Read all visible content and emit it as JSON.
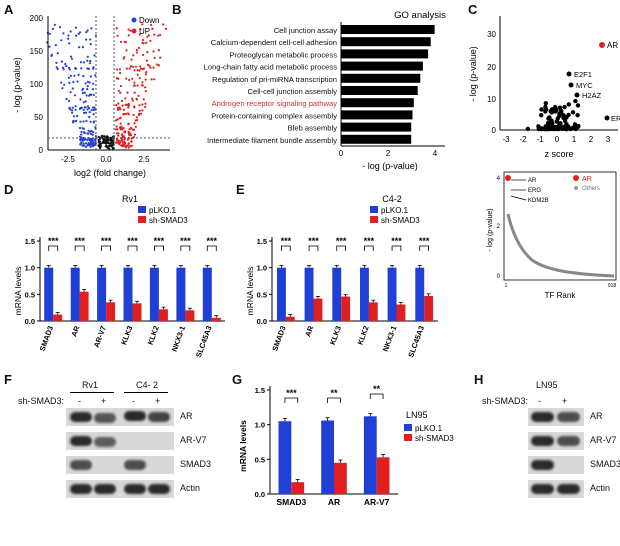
{
  "panelA": {
    "label": "A",
    "xlabel": "log2 (fold change)",
    "ylabel": "- log (p-value)",
    "xticks": [
      "-2.5",
      "0.0",
      "2.5"
    ],
    "yticks": [
      "0",
      "50",
      "100",
      "150",
      "200"
    ],
    "legend": [
      {
        "name": "Down",
        "color": "#1f3fd6"
      },
      {
        "name": "UP",
        "color": "#e02020"
      }
    ]
  },
  "panelB": {
    "label": "B",
    "title": "GO analysis",
    "xlabel": "- log (p-value)",
    "xticks": [
      "0",
      "2",
      "4"
    ],
    "highlight_color": "#d03030",
    "chart_data": {
      "type": "bar",
      "categories": [
        "Cell junction assay",
        "Calcium-dependent cell-cell adhesion",
        "Proteoglycan metabolic process",
        "Long-chain fatty acid metabolic process",
        "Regulation of pri-miRNA transcription",
        "Cell-cell junction assembly",
        "Androgen receptor signaling pathway",
        "Protein-containing complex assembly",
        "Bleb assembly",
        "Intermediate filament bundle assembly"
      ],
      "values": [
        3.6,
        3.45,
        3.35,
        3.15,
        3.05,
        2.95,
        2.8,
        2.75,
        2.7,
        2.7
      ],
      "xlim": [
        0,
        4
      ],
      "highlight_index": 6
    }
  },
  "panelC": {
    "label": "C",
    "xlabel": "z score",
    "ylabel": "- log (p-value)",
    "xticks": [
      "-3",
      "-2",
      "-1",
      "0",
      "1",
      "2",
      "3"
    ],
    "yticks": [
      "0",
      "10",
      "20",
      "30"
    ],
    "annotations": [
      "AR",
      "E2F1",
      "MYC",
      "H2AZ",
      "ERG"
    ],
    "rank": {
      "xlabel": "TF Rank",
      "ylabel": "- log (p-value)",
      "yticks": [
        "0",
        "2",
        "4"
      ],
      "xticks": [
        "1",
        "918"
      ],
      "labels": [
        "AR",
        "ERG",
        "KDM2B"
      ],
      "legend": [
        "AR",
        "Others"
      ]
    }
  },
  "panelD": {
    "label": "D",
    "title": "Rv1",
    "ylabel": "mRNA levels",
    "yticks": [
      "0.0",
      "0.5",
      "1.0",
      "1.5"
    ],
    "sig": "***",
    "chart_data": {
      "type": "bar",
      "categories": [
        "SMAD3",
        "AR",
        "AR-V7",
        "KLK3",
        "KLK2",
        "NKX3-1",
        "SLC45A3"
      ],
      "series": [
        {
          "name": "pLKO.1",
          "color": "#1f3fd6",
          "values": [
            1,
            1,
            1,
            1,
            1,
            1,
            1
          ]
        },
        {
          "name": "sh-SMAD3",
          "color": "#e02020",
          "values": [
            0.12,
            0.55,
            0.35,
            0.33,
            0.22,
            0.2,
            0.06
          ]
        }
      ],
      "ylim": [
        0,
        1.5
      ]
    }
  },
  "panelE": {
    "label": "E",
    "title": "C4-2",
    "ylabel": "mRNA levels",
    "yticks": [
      "0.0",
      "0.5",
      "1.0",
      "1.5"
    ],
    "sig": "***",
    "chart_data": {
      "type": "bar",
      "categories": [
        "SMAD3",
        "AR",
        "KLK3",
        "KLK2",
        "NKX3-1",
        "SLC45A3"
      ],
      "series": [
        {
          "name": "pLKO.1",
          "color": "#1f3fd6",
          "values": [
            1,
            1,
            1,
            1,
            1,
            1
          ]
        },
        {
          "name": "sh-SMAD3",
          "color": "#e02020",
          "values": [
            0.08,
            0.42,
            0.46,
            0.35,
            0.31,
            0.47
          ]
        }
      ],
      "ylim": [
        0,
        1.5
      ]
    }
  },
  "panelF": {
    "label": "F",
    "cells": [
      "Rv1",
      "C4- 2"
    ],
    "shrow": "sh-SMAD3:",
    "signs": [
      "-",
      "+",
      "-",
      "+"
    ],
    "proteins": [
      "AR",
      "AR-V7",
      "SMAD3",
      "Actin"
    ]
  },
  "panelG": {
    "label": "G",
    "title": "LN95",
    "ylabel": "mRNA levels",
    "yticks": [
      "0.0",
      "0.5",
      "1.0",
      "1.5"
    ],
    "sigs": [
      "***",
      "**",
      "**"
    ],
    "chart_data": {
      "type": "bar",
      "categories": [
        "SMAD3",
        "AR",
        "AR-V7"
      ],
      "series": [
        {
          "name": "pLKO.1",
          "color": "#1f3fd6",
          "values": [
            1.05,
            1.06,
            1.12
          ]
        },
        {
          "name": "sh-SMAD3",
          "color": "#e02020",
          "values": [
            0.17,
            0.45,
            0.53
          ]
        }
      ],
      "ylim": [
        0,
        1.5
      ]
    }
  },
  "panelH": {
    "label": "H",
    "cell": "LN95",
    "shrow": "sh-SMAD3:",
    "signs": [
      "-",
      "+"
    ],
    "proteins": [
      "AR",
      "AR-V7",
      "SMAD3",
      "Actin"
    ]
  }
}
